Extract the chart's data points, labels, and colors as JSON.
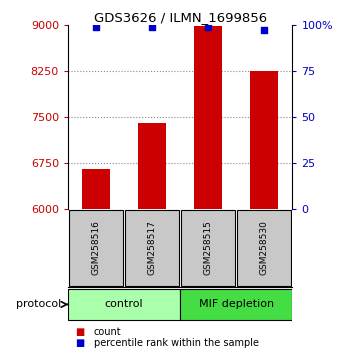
{
  "title": "GDS3626 / ILMN_1699856",
  "samples": [
    "GSM258516",
    "GSM258517",
    "GSM258515",
    "GSM258530"
  ],
  "counts": [
    6650,
    7400,
    8980,
    8250
  ],
  "percentile_ranks": [
    99,
    99,
    99,
    97
  ],
  "bar_color": "#CC0000",
  "percentile_color": "#0000CC",
  "left_ylim": [
    6000,
    9000
  ],
  "right_ylim": [
    0,
    100
  ],
  "left_yticks": [
    6000,
    6750,
    7500,
    8250,
    9000
  ],
  "right_yticks": [
    0,
    25,
    50,
    75,
    100
  ],
  "right_yticklabels": [
    "0",
    "25",
    "50",
    "75",
    "100%"
  ],
  "left_tick_color": "#CC0000",
  "right_tick_color": "#0000CC",
  "grid_color": "#888888",
  "label_area_color": "#C8C8C8",
  "group_ranges": [
    [
      -0.5,
      1.5,
      "control",
      "#AAFFAA"
    ],
    [
      1.5,
      3.5,
      "MIF depletion",
      "#44DD44"
    ]
  ],
  "protocol_label": "protocol",
  "legend_count_label": "count",
  "legend_pct_label": "percentile rank within the sample",
  "bar_width": 0.5
}
